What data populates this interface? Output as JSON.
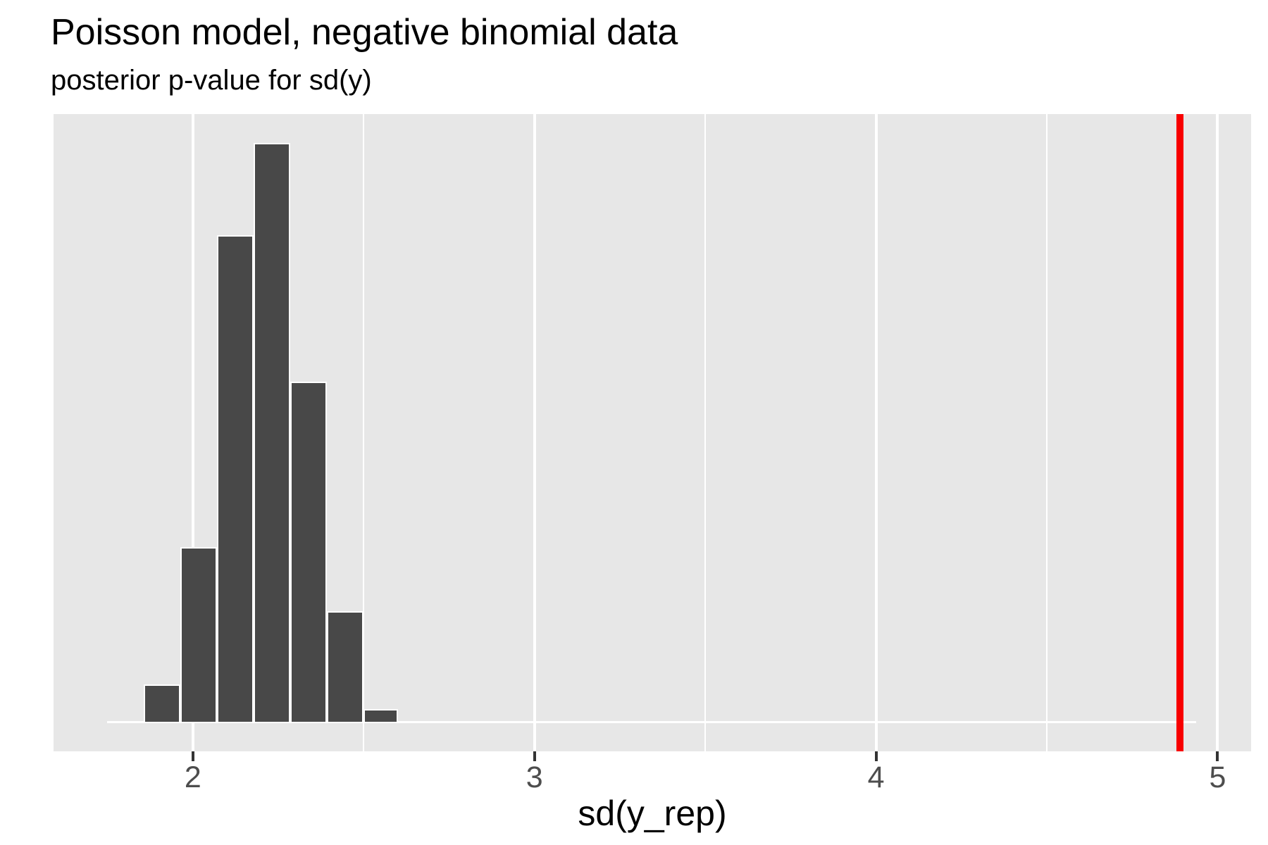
{
  "header": {
    "title": "Poisson model, negative binomial data",
    "subtitle": "posterior p-value for sd(y)"
  },
  "chart_data": {
    "type": "bar",
    "subtype": "histogram",
    "title": "Poisson model, negative binomial data",
    "subtitle": "posterior p-value for sd(y)",
    "xlabel": "sd(y_rep)",
    "ylabel": "",
    "xlim": [
      1.592,
      5.098
    ],
    "x_ticks": [
      2,
      3,
      4,
      5
    ],
    "x_minor_ticks": [
      2.5,
      3.5,
      4.5
    ],
    "grid": "vertical-only",
    "legend": "none",
    "bars": [
      {
        "x0": 1.856,
        "x1": 1.964,
        "height": 0.067
      },
      {
        "x0": 1.964,
        "x1": 2.071,
        "height": 0.303
      },
      {
        "x0": 2.071,
        "x1": 2.178,
        "height": 0.841
      },
      {
        "x0": 2.178,
        "x1": 2.285,
        "height": 1.0
      },
      {
        "x0": 2.285,
        "x1": 2.392,
        "height": 0.589
      },
      {
        "x0": 2.392,
        "x1": 2.499,
        "height": 0.193
      },
      {
        "x0": 2.499,
        "x1": 2.601,
        "height": 0.024
      }
    ],
    "zero_count_line": {
      "x0": 1.748,
      "x1": 4.938
    },
    "observed_line": {
      "x": 4.89
    },
    "colors": {
      "panel_bg": "#E7E7E7",
      "bar_fill": "#484848",
      "bar_stroke": "#ffffff",
      "gridline": "#ffffff",
      "observed_line": "#F80000",
      "tick_mark": "#333333",
      "tick_label": "#4D4D4D",
      "text": "#000000"
    }
  }
}
